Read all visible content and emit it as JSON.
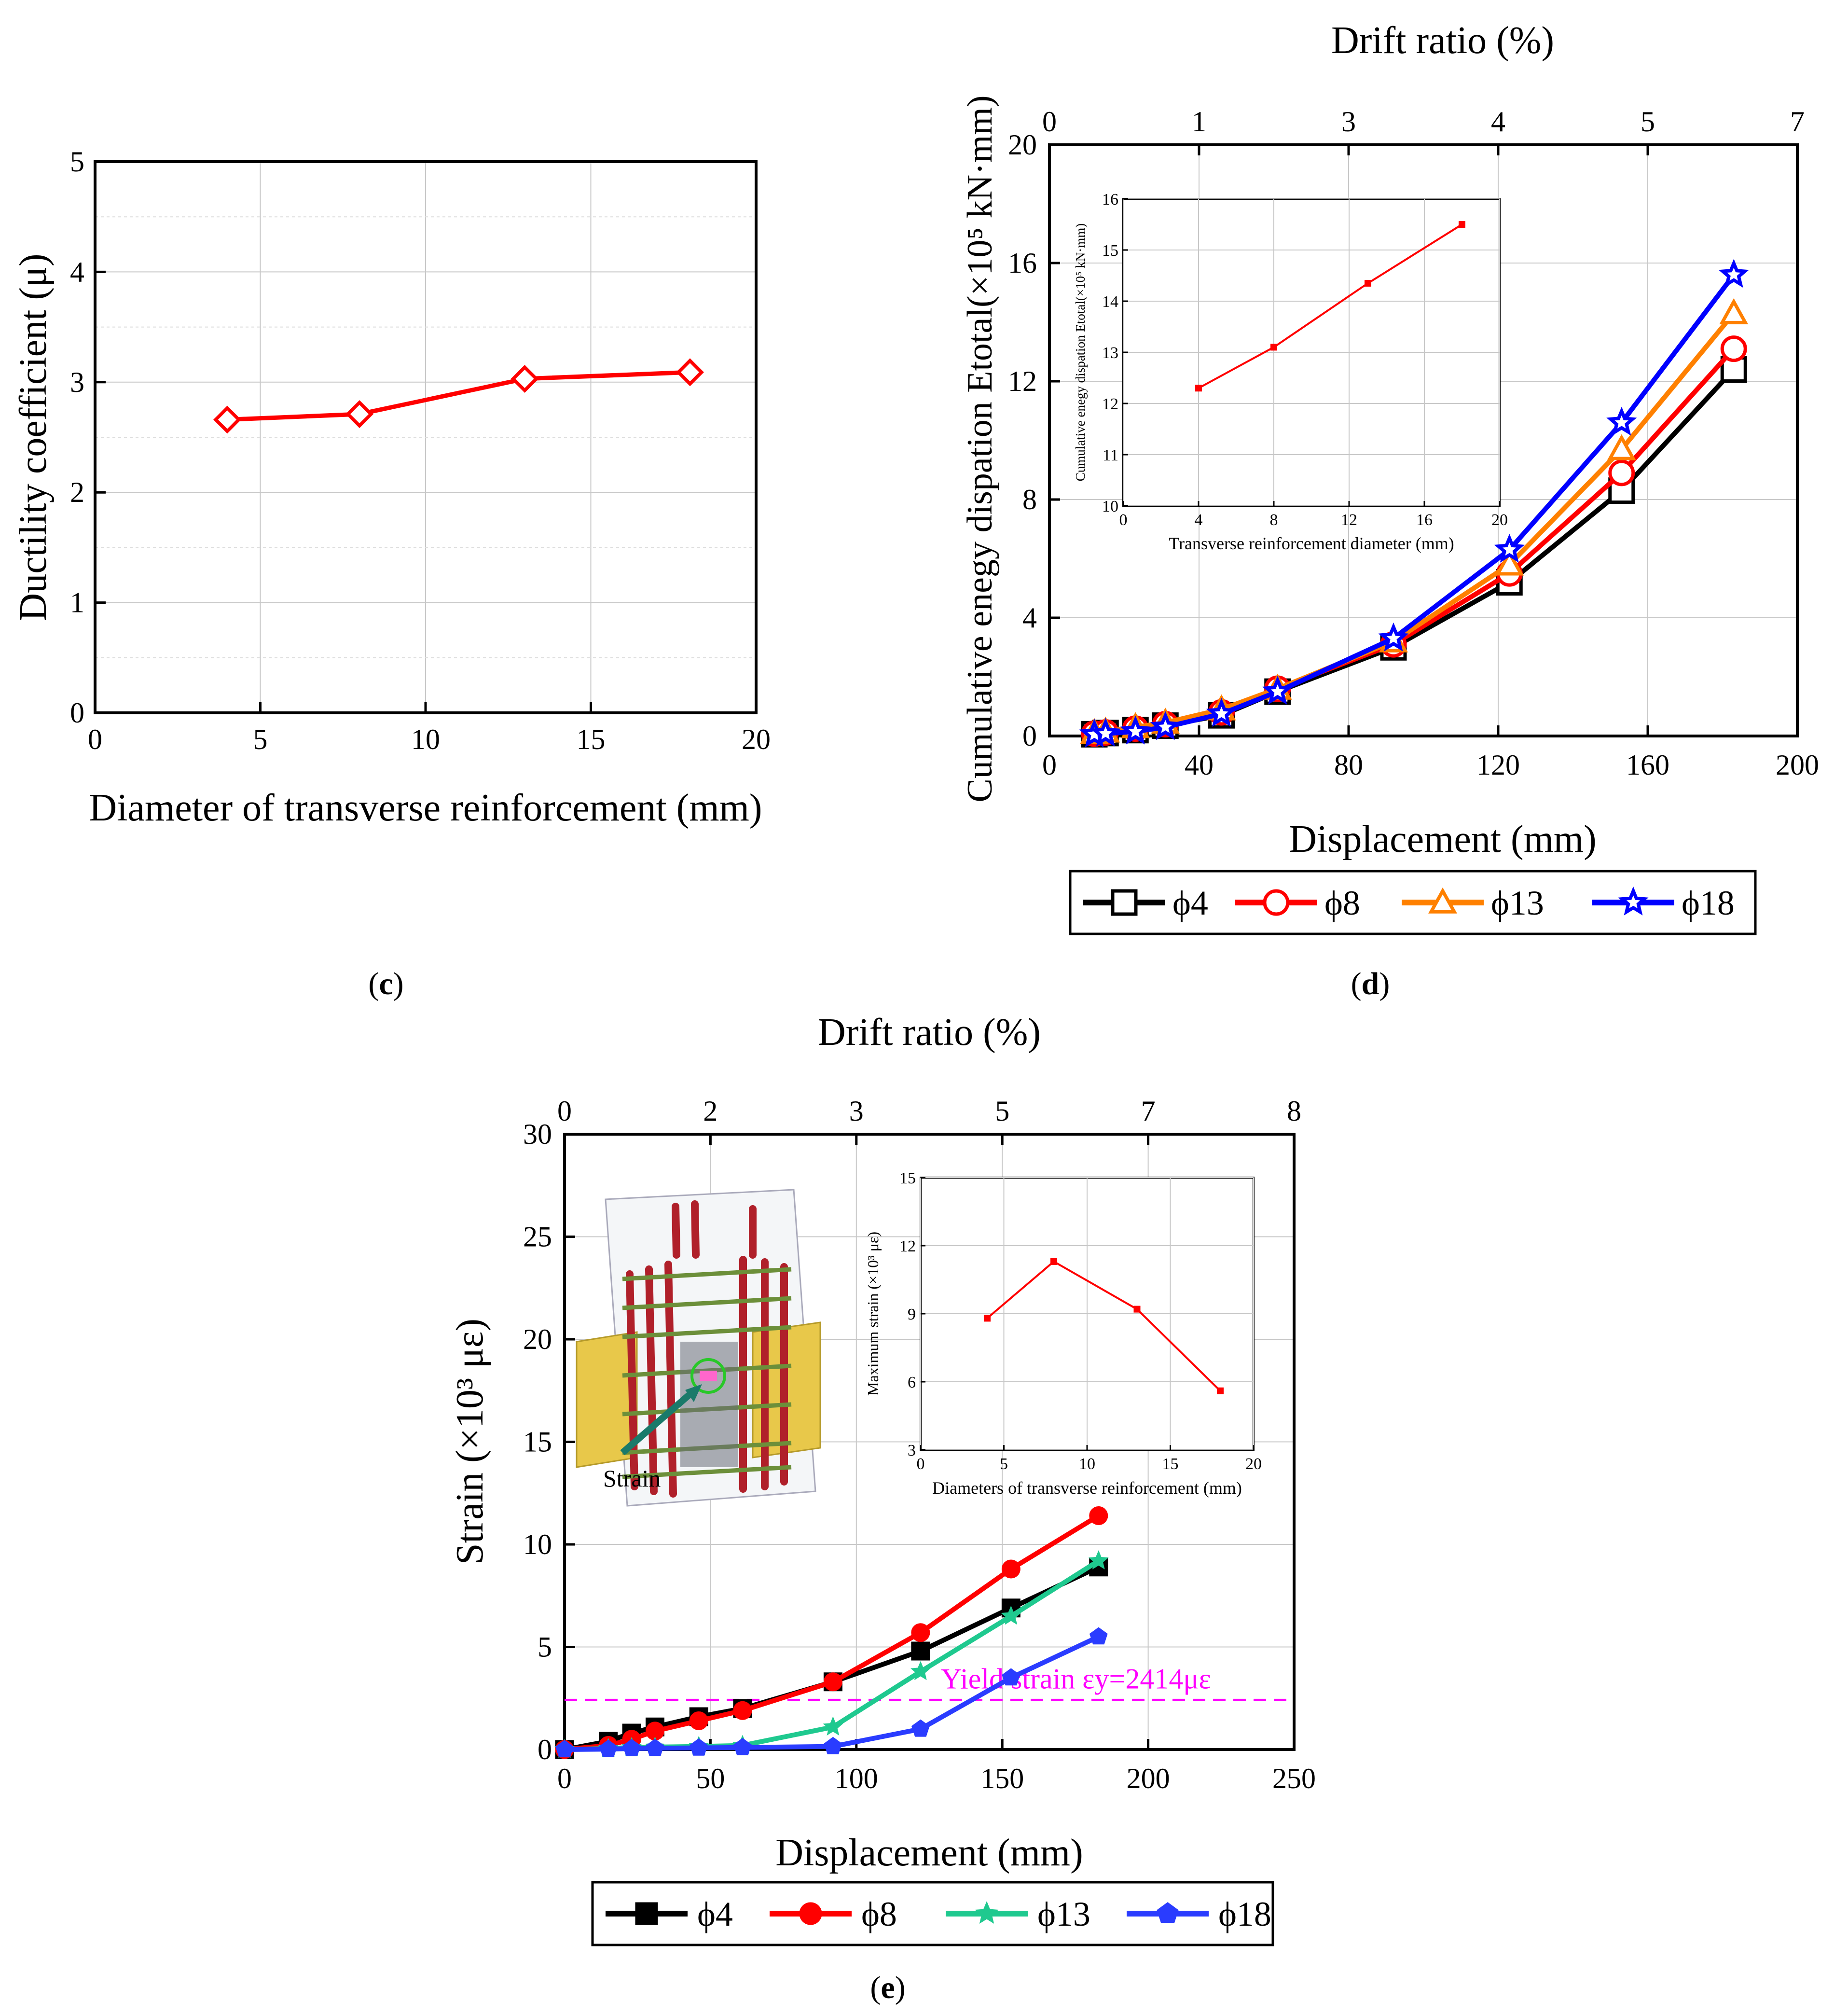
{
  "panel_labels": {
    "c": "c",
    "d": "d",
    "e": "e"
  },
  "chart_data": [
    {
      "id": "c",
      "type": "line",
      "xlabel": "Diameter of transverse reinforcement (mm)",
      "ylabel": "Ductility coefficient (μ)",
      "xlim": [
        0,
        20
      ],
      "ylim": [
        0,
        5
      ],
      "xticks": [
        0,
        5,
        10,
        15,
        20
      ],
      "yticks": [
        0,
        1,
        2,
        3,
        4,
        5
      ],
      "series": [
        {
          "name": "Ductility",
          "color": "#ff0000",
          "marker": "diamond",
          "x": [
            4,
            8,
            13,
            18
          ],
          "y": [
            2.66,
            2.71,
            3.03,
            3.09
          ]
        }
      ]
    },
    {
      "id": "d",
      "type": "line",
      "xlabel": "Displacement (mm)",
      "ylabel": "Cumulative enegy dispation Etotal(×10⁵ kN·mm)",
      "x2label": "Drift ratio (%)",
      "xlim": [
        0,
        200
      ],
      "ylim": [
        0,
        20
      ],
      "xticks": [
        0,
        40,
        80,
        120,
        160,
        200
      ],
      "yticks": [
        0,
        4,
        8,
        12,
        16,
        20
      ],
      "x2ticks": [
        "0",
        "1",
        "3",
        "4",
        "5",
        "7"
      ],
      "series": [
        {
          "name": "ϕ4",
          "color": "#000000",
          "marker": "square",
          "x": [
            12,
            15,
            23,
            31,
            46,
            61,
            92,
            123,
            153,
            183
          ],
          "y": [
            0.06,
            0.1,
            0.2,
            0.35,
            0.7,
            1.5,
            3.0,
            5.2,
            8.3,
            12.4
          ]
        },
        {
          "name": "ϕ8",
          "color": "#ff0000",
          "marker": "circle",
          "x": [
            12,
            15,
            23,
            31,
            46,
            61,
            92,
            123,
            153,
            183
          ],
          "y": [
            0.08,
            0.12,
            0.25,
            0.4,
            0.8,
            1.6,
            3.1,
            5.5,
            8.9,
            13.1
          ]
        },
        {
          "name": "ϕ13",
          "color": "#ff8000",
          "marker": "triangle",
          "x": [
            12,
            15,
            23,
            31,
            46,
            61,
            92,
            123,
            153,
            183
          ],
          "y": [
            0.1,
            0.15,
            0.3,
            0.45,
            0.9,
            1.6,
            3.2,
            5.8,
            9.7,
            14.3
          ]
        },
        {
          "name": "ϕ18",
          "color": "#0000ff",
          "marker": "star",
          "x": [
            12,
            15,
            23,
            31,
            46,
            61,
            92,
            123,
            153,
            183
          ],
          "y": [
            0.05,
            0.08,
            0.15,
            0.3,
            0.75,
            1.5,
            3.3,
            6.3,
            10.6,
            15.6
          ]
        }
      ],
      "inset": {
        "xlabel": "Transverse reinforcement diameter (mm)",
        "ylabel": "Cumulative enegy dispation Etotal(×10⁵ kN·mm)",
        "xlim": [
          0,
          20
        ],
        "ylim": [
          10,
          16
        ],
        "xticks": [
          0,
          4,
          8,
          12,
          16,
          20
        ],
        "yticks": [
          10,
          11,
          12,
          13,
          14,
          15,
          16
        ],
        "x": [
          4,
          8,
          13,
          18
        ],
        "y": [
          12.3,
          13.1,
          14.35,
          15.5
        ]
      }
    },
    {
      "id": "e",
      "type": "line",
      "xlabel": "Displacement (mm)",
      "ylabel": "Strain (×10³ με)",
      "x2label": "Drift ratio (%)",
      "xlim": [
        0,
        250
      ],
      "ylim": [
        0,
        30
      ],
      "xticks": [
        0,
        50,
        100,
        150,
        200,
        250
      ],
      "yticks": [
        0,
        5,
        10,
        15,
        20,
        25,
        30
      ],
      "x2ticks": [
        "0",
        "2",
        "3",
        "5",
        "7",
        "8"
      ],
      "yield_line": {
        "y": 2.414,
        "label": "Yield strain εy=2414με",
        "color": "#ff00ff"
      },
      "image_annotation": "Strain",
      "series": [
        {
          "name": "ϕ4",
          "color": "#000000",
          "marker": "square",
          "x": [
            0,
            15,
            23,
            31,
            46,
            61,
            92,
            122,
            153,
            183
          ],
          "y": [
            0,
            0.4,
            0.8,
            1.1,
            1.6,
            2.0,
            3.3,
            4.8,
            6.9,
            8.9
          ]
        },
        {
          "name": "ϕ8",
          "color": "#ff0000",
          "marker": "circle",
          "x": [
            0,
            15,
            23,
            31,
            46,
            61,
            92,
            122,
            153,
            183
          ],
          "y": [
            0,
            0.2,
            0.5,
            0.9,
            1.4,
            1.9,
            3.3,
            5.7,
            8.8,
            11.4
          ]
        },
        {
          "name": "ϕ13",
          "color": "#1fc98f",
          "marker": "star",
          "x": [
            0,
            15,
            23,
            31,
            46,
            61,
            92,
            122,
            153,
            183
          ],
          "y": [
            0,
            0.05,
            0.1,
            0.12,
            0.15,
            0.2,
            1.1,
            3.8,
            6.5,
            9.2
          ]
        },
        {
          "name": "ϕ18",
          "color": "#2a3cff",
          "marker": "pentagon",
          "x": [
            0,
            15,
            23,
            31,
            46,
            61,
            92,
            122,
            153,
            183
          ],
          "y": [
            0,
            0.02,
            0.05,
            0.06,
            0.08,
            0.1,
            0.15,
            1.0,
            3.5,
            5.5
          ]
        }
      ],
      "inset": {
        "xlabel": "Diameters of transverse reinforcement (mm)",
        "ylabel": "Maximum strain (×10³ με)",
        "xlim": [
          0,
          20
        ],
        "ylim": [
          3,
          15
        ],
        "xticks": [
          0,
          5,
          10,
          15,
          20
        ],
        "yticks": [
          3,
          6,
          9,
          12,
          15
        ],
        "x": [
          4,
          8,
          13,
          18
        ],
        "y": [
          8.8,
          11.3,
          9.2,
          5.6
        ]
      }
    }
  ]
}
